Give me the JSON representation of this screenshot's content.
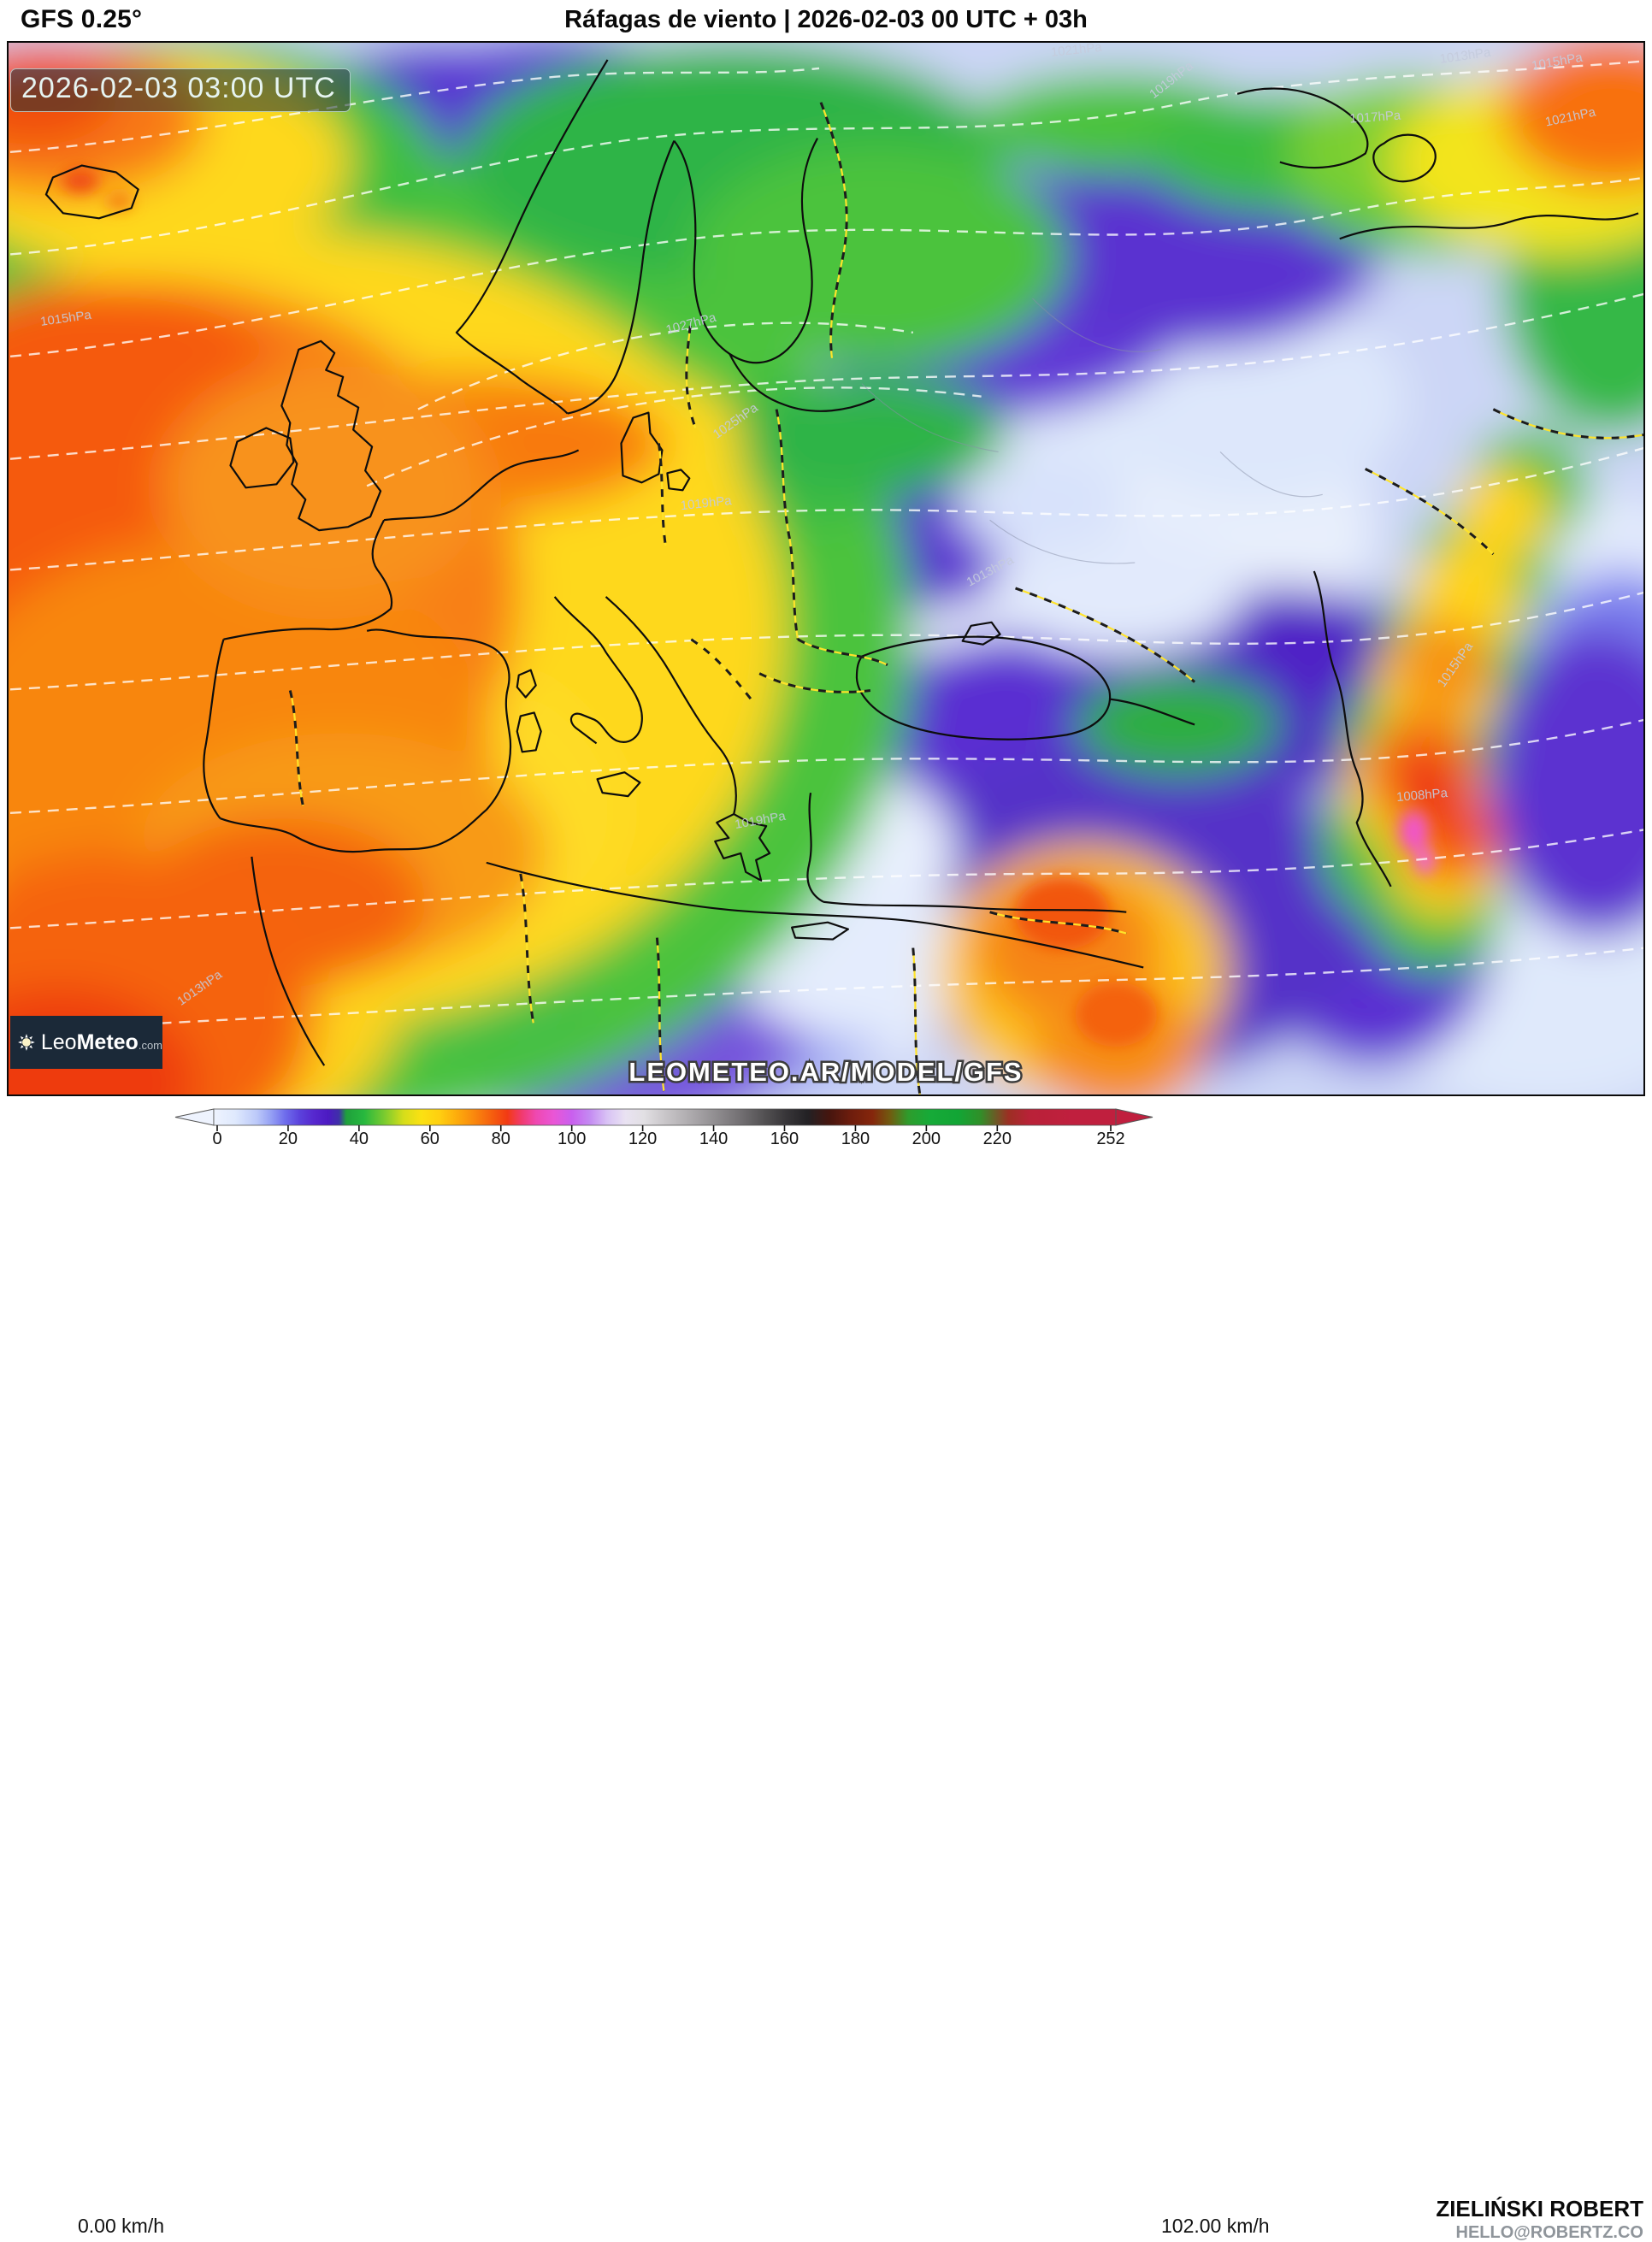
{
  "header": {
    "model_label": "GFS 0.25°",
    "title": "Ráfagas de viento | 2026-02-03 00 UTC + 03h"
  },
  "map": {
    "timestamp_badge": "2026-02-03 03:00 UTC",
    "watermark": "LEOMETEO.AR/MODEL/GFS",
    "logo": {
      "prefix": "Leo",
      "suffix": "Meteo",
      "tld": ".com"
    },
    "isobar_labels": [
      "1021hPa",
      "1013hPa",
      "1015hPa",
      "1017hPa",
      "1021hPa",
      "1019hPa",
      "1027hPa",
      "1025hPa",
      "1019hPa",
      "1013hPa",
      "1015hPa",
      "1019hPa",
      "1013hPa",
      "1015hPa",
      "1008hPa"
    ]
  },
  "legend": {
    "min_label": "0.00 km/h",
    "max_label": "102.00 km/h",
    "unit": "km/h",
    "scale_min": 0,
    "scale_max": 252,
    "ticks": [
      0,
      20,
      40,
      60,
      80,
      100,
      120,
      140,
      160,
      180,
      200,
      220,
      252
    ],
    "gradient": [
      {
        "v": 0,
        "c": "#eef3fe"
      },
      {
        "v": 6,
        "c": "#dfe9fd"
      },
      {
        "v": 12,
        "c": "#bcc9f9"
      },
      {
        "v": 16,
        "c": "#95a0f4"
      },
      {
        "v": 20,
        "c": "#6e6cec"
      },
      {
        "v": 24,
        "c": "#5b42dc"
      },
      {
        "v": 28,
        "c": "#5627ce"
      },
      {
        "v": 32,
        "c": "#4c1ac2"
      },
      {
        "v": 35,
        "c": "#3f30a8"
      },
      {
        "v": 37,
        "c": "#1fa03c"
      },
      {
        "v": 42,
        "c": "#27b83e"
      },
      {
        "v": 48,
        "c": "#7fcc2e"
      },
      {
        "v": 53,
        "c": "#d6dd1a"
      },
      {
        "v": 58,
        "c": "#fbe112"
      },
      {
        "v": 63,
        "c": "#ffcf10"
      },
      {
        "v": 68,
        "c": "#fdab0c"
      },
      {
        "v": 73,
        "c": "#f9860d"
      },
      {
        "v": 78,
        "c": "#f55c0e"
      },
      {
        "v": 82,
        "c": "#f23a14"
      },
      {
        "v": 86,
        "c": "#f13a6e"
      },
      {
        "v": 90,
        "c": "#ef48b0"
      },
      {
        "v": 95,
        "c": "#e956d6"
      },
      {
        "v": 100,
        "c": "#c95fee"
      },
      {
        "v": 105,
        "c": "#c48af2"
      },
      {
        "v": 110,
        "c": "#d9c3f5"
      },
      {
        "v": 115,
        "c": "#e9e2f2"
      },
      {
        "v": 120,
        "c": "#e2e0e4"
      },
      {
        "v": 126,
        "c": "#c9c6c9"
      },
      {
        "v": 133,
        "c": "#aeabae"
      },
      {
        "v": 140,
        "c": "#918e91"
      },
      {
        "v": 147,
        "c": "#737073"
      },
      {
        "v": 154,
        "c": "#525052"
      },
      {
        "v": 160,
        "c": "#373538"
      },
      {
        "v": 166,
        "c": "#232124"
      },
      {
        "v": 172,
        "c": "#46150e"
      },
      {
        "v": 178,
        "c": "#6e1d0d"
      },
      {
        "v": 184,
        "c": "#85260c"
      },
      {
        "v": 189,
        "c": "#705c10"
      },
      {
        "v": 194,
        "c": "#2e9c2c"
      },
      {
        "v": 200,
        "c": "#16aa38"
      },
      {
        "v": 208,
        "c": "#12a535"
      },
      {
        "v": 214,
        "c": "#2f9029"
      },
      {
        "v": 222,
        "c": "#9c2f23"
      },
      {
        "v": 228,
        "c": "#b92138"
      },
      {
        "v": 240,
        "c": "#c01f3e"
      },
      {
        "v": 252,
        "c": "#c01f3e"
      }
    ]
  },
  "credit": {
    "name": "ZIELIŃSKI ROBERT",
    "email": "HELLO@ROBERTZ.CO"
  }
}
